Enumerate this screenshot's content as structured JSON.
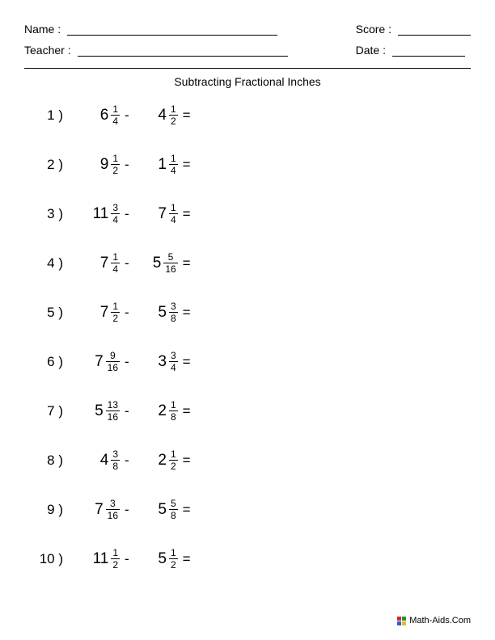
{
  "header": {
    "name_label": "Name :",
    "teacher_label": "Teacher :",
    "score_label": "Score :",
    "date_label": "Date :"
  },
  "title": "Subtracting Fractional Inches",
  "problems": [
    {
      "n": "1 )",
      "a_whole": "6",
      "a_num": "1",
      "a_den": "4",
      "b_whole": "4",
      "b_num": "1",
      "b_den": "2"
    },
    {
      "n": "2 )",
      "a_whole": "9",
      "a_num": "1",
      "a_den": "2",
      "b_whole": "1",
      "b_num": "1",
      "b_den": "4"
    },
    {
      "n": "3 )",
      "a_whole": "11",
      "a_num": "3",
      "a_den": "4",
      "b_whole": "7",
      "b_num": "1",
      "b_den": "4"
    },
    {
      "n": "4 )",
      "a_whole": "7",
      "a_num": "1",
      "a_den": "4",
      "b_whole": "5",
      "b_num": "5",
      "b_den": "16"
    },
    {
      "n": "5 )",
      "a_whole": "7",
      "a_num": "1",
      "a_den": "2",
      "b_whole": "5",
      "b_num": "3",
      "b_den": "8"
    },
    {
      "n": "6 )",
      "a_whole": "7",
      "a_num": "9",
      "a_den": "16",
      "b_whole": "3",
      "b_num": "3",
      "b_den": "4"
    },
    {
      "n": "7 )",
      "a_whole": "5",
      "a_num": "13",
      "a_den": "16",
      "b_whole": "2",
      "b_num": "1",
      "b_den": "8"
    },
    {
      "n": "8 )",
      "a_whole": "4",
      "a_num": "3",
      "a_den": "8",
      "b_whole": "2",
      "b_num": "1",
      "b_den": "2"
    },
    {
      "n": "9 )",
      "a_whole": "7",
      "a_num": "3",
      "a_den": "16",
      "b_whole": "5",
      "b_num": "5",
      "b_den": "8"
    },
    {
      "n": "10 )",
      "a_whole": "11",
      "a_num": "1",
      "a_den": "2",
      "b_whole": "5",
      "b_num": "1",
      "b_den": "2"
    }
  ],
  "operator": "-",
  "equals": "=",
  "footer": "Math-Aids.Com",
  "logo_colors": [
    "#d92525",
    "#2a8f2a",
    "#2a5fd9",
    "#e8b828"
  ]
}
